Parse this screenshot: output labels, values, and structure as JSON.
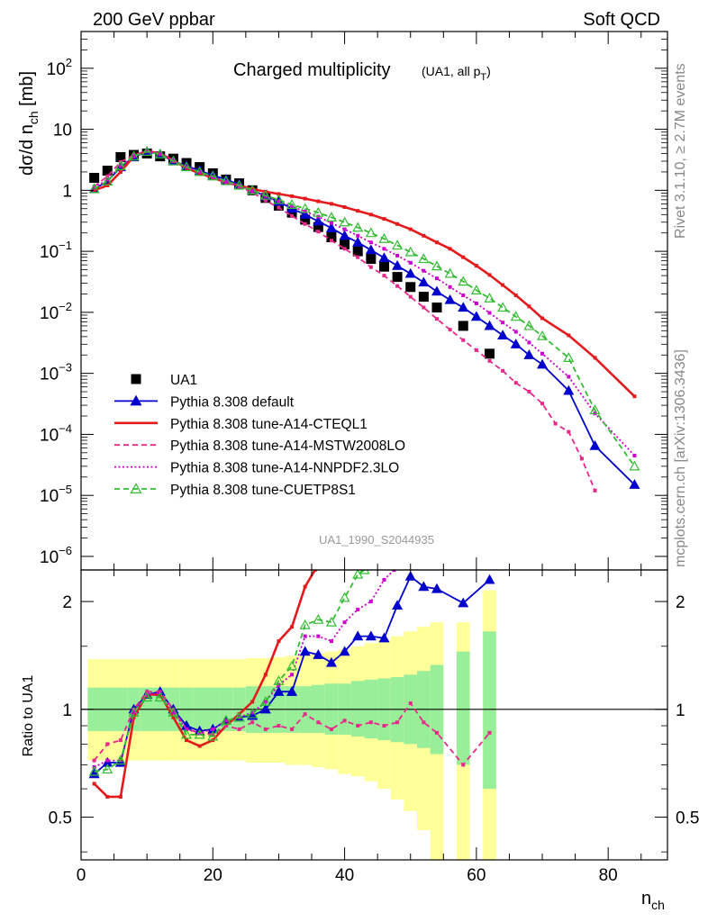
{
  "header": {
    "left": "200 GeV ppbar",
    "right": "Soft QCD"
  },
  "side_labels": {
    "rivet": "Rivet 3.1.10, ≥ 2.7M events",
    "mcplots": "mcplots.cern.ch [arXiv:1306.3436]"
  },
  "chart_data": [
    {
      "type": "scatter",
      "panel": "main",
      "title_main": "Charged multiplicity",
      "title_sub": "(UA1, all p",
      "title_sub_subscript": "T",
      "title_sub_end": ")",
      "ylabel": "dσ/d n",
      "ylabel_subscript": "ch",
      "ylabel_unit": " [mb]",
      "analysis_label": "UA1_1990_S2044935",
      "y_scale": "log",
      "xlim": [
        0,
        89
      ],
      "ylim": [
        6e-07,
        400
      ],
      "y_ticks": [
        {
          "label": "10",
          "exp": "2"
        },
        {
          "label": "10",
          "exp": ""
        },
        {
          "label": "1",
          "exp": ""
        },
        {
          "label": "10",
          "exp": "−1"
        },
        {
          "label": "10",
          "exp": "−2"
        },
        {
          "label": "10",
          "exp": "−3"
        },
        {
          "label": "10",
          "exp": "−4"
        },
        {
          "label": "10",
          "exp": "−5"
        },
        {
          "label": "10",
          "exp": "−6"
        }
      ],
      "legend_position": "bottom-left",
      "series": [
        {
          "name": "UA1",
          "color": "#000000",
          "marker": "square",
          "x": [
            2,
            4,
            6,
            8,
            10,
            12,
            14,
            16,
            18,
            20,
            22,
            24,
            26,
            28,
            30,
            32,
            34,
            36,
            38,
            40,
            42,
            44,
            46,
            48,
            50,
            52,
            54,
            58,
            62
          ],
          "y": [
            1.6,
            2.1,
            3.5,
            3.8,
            4.0,
            3.6,
            3.3,
            2.8,
            2.4,
            1.9,
            1.5,
            1.3,
            1.0,
            0.75,
            0.56,
            0.43,
            0.33,
            0.25,
            0.17,
            0.13,
            0.1,
            0.075,
            0.056,
            0.038,
            0.026,
            0.018,
            0.012,
            0.006,
            0.0021
          ]
        },
        {
          "name": "Pythia 8.308 default",
          "color": "#0000cc",
          "marker": "triangle-filled",
          "line": "solid",
          "x": [
            2,
            4,
            6,
            8,
            10,
            12,
            14,
            16,
            18,
            20,
            22,
            24,
            26,
            28,
            30,
            32,
            34,
            36,
            38,
            40,
            42,
            44,
            46,
            48,
            50,
            52,
            54,
            56,
            58,
            60,
            62,
            64,
            66,
            68,
            70,
            74,
            78,
            84
          ],
          "y": [
            1.05,
            1.4,
            2.4,
            3.5,
            4.3,
            3.9,
            3.0,
            2.5,
            2.1,
            1.75,
            1.5,
            1.25,
            1.0,
            0.8,
            0.65,
            0.5,
            0.4,
            0.31,
            0.24,
            0.18,
            0.14,
            0.105,
            0.078,
            0.058,
            0.043,
            0.031,
            0.022,
            0.016,
            0.012,
            0.0085,
            0.006,
            0.0042,
            0.003,
            0.002,
            0.0014,
            0.00052,
            6.5e-05,
            1.5e-05
          ]
        },
        {
          "name": "Pythia 8.308 tune-A14-CTEQL1",
          "color": "#e41a1c",
          "marker": "none",
          "line": "solid",
          "x": [
            2,
            4,
            6,
            8,
            10,
            12,
            14,
            16,
            18,
            20,
            22,
            24,
            26,
            28,
            30,
            32,
            34,
            36,
            38,
            40,
            42,
            44,
            46,
            48,
            50,
            52,
            54,
            56,
            58,
            60,
            62,
            64,
            66,
            68,
            70,
            74,
            78,
            84
          ],
          "y": [
            1.0,
            1.2,
            2.0,
            3.6,
            4.4,
            4.0,
            3.1,
            2.3,
            1.9,
            1.6,
            1.35,
            1.2,
            1.05,
            0.95,
            0.87,
            0.8,
            0.73,
            0.66,
            0.6,
            0.53,
            0.46,
            0.4,
            0.34,
            0.28,
            0.23,
            0.18,
            0.14,
            0.11,
            0.08,
            0.058,
            0.041,
            0.028,
            0.019,
            0.0125,
            0.008,
            0.0042,
            0.0018,
            0.00042
          ]
        },
        {
          "name": "Pythia 8.308 tune-A14-MSTW2008LO",
          "color": "#e7298a",
          "marker": "none",
          "line": "dashed",
          "x": [
            2,
            4,
            6,
            8,
            10,
            12,
            14,
            16,
            18,
            20,
            22,
            24,
            26,
            28,
            30,
            32,
            34,
            36,
            38,
            40,
            42,
            44,
            46,
            48,
            50,
            52,
            54,
            56,
            58,
            60,
            62,
            64,
            66,
            68,
            70,
            72,
            74,
            76,
            78
          ],
          "y": [
            1.15,
            1.7,
            2.9,
            3.8,
            4.4,
            3.9,
            3.0,
            2.4,
            2.0,
            1.6,
            1.35,
            1.15,
            0.92,
            0.68,
            0.52,
            0.38,
            0.28,
            0.21,
            0.15,
            0.11,
            0.08,
            0.055,
            0.04,
            0.027,
            0.018,
            0.012,
            0.0078,
            0.0052,
            0.0035,
            0.0024,
            0.0016,
            0.0011,
            0.0007,
            0.0005,
            0.00032,
            0.00015,
            0.00011,
            4e-05,
            1.2e-05
          ]
        },
        {
          "name": "Pythia 8.308 tune-A14-NNPDF2.3LO",
          "color": "#cc00cc",
          "marker": "none",
          "line": "dotted",
          "x": [
            2,
            4,
            6,
            8,
            10,
            12,
            14,
            16,
            18,
            20,
            22,
            24,
            26,
            28,
            30,
            32,
            34,
            36,
            38,
            40,
            42,
            44,
            46,
            48,
            50,
            52,
            54,
            56,
            58,
            60,
            62,
            64,
            66,
            68,
            70,
            74,
            78,
            84
          ],
          "y": [
            1.1,
            1.5,
            2.5,
            3.6,
            4.4,
            4.0,
            3.1,
            2.4,
            2.0,
            1.65,
            1.4,
            1.2,
            0.98,
            0.8,
            0.66,
            0.54,
            0.45,
            0.37,
            0.29,
            0.23,
            0.18,
            0.14,
            0.11,
            0.085,
            0.065,
            0.048,
            0.036,
            0.026,
            0.019,
            0.014,
            0.0098,
            0.0068,
            0.0048,
            0.0032,
            0.0021,
            0.00088,
            0.00022,
            4.5e-05
          ]
        },
        {
          "name": "Pythia 8.308 tune-CUETP8S1",
          "color": "#33bb33",
          "marker": "triangle-open",
          "line": "dashed",
          "x": [
            2,
            4,
            6,
            8,
            10,
            12,
            14,
            16,
            18,
            20,
            22,
            24,
            26,
            28,
            30,
            32,
            34,
            36,
            38,
            40,
            42,
            44,
            46,
            48,
            50,
            52,
            54,
            56,
            58,
            60,
            62,
            64,
            66,
            68,
            70,
            74,
            78,
            84
          ],
          "y": [
            1.05,
            1.4,
            2.5,
            3.6,
            4.3,
            3.9,
            3.0,
            2.4,
            2.0,
            1.7,
            1.42,
            1.2,
            1.0,
            0.82,
            0.7,
            0.58,
            0.5,
            0.43,
            0.36,
            0.3,
            0.245,
            0.2,
            0.16,
            0.125,
            0.097,
            0.075,
            0.057,
            0.043,
            0.032,
            0.023,
            0.017,
            0.012,
            0.0085,
            0.006,
            0.0041,
            0.0018,
            0.00025,
            3e-05
          ]
        }
      ]
    },
    {
      "type": "line",
      "panel": "ratio",
      "ylabel": "Ratio to UA1",
      "xlabel": "n",
      "xlabel_subscript": "ch",
      "y_scale": "log",
      "xlim": [
        0,
        89
      ],
      "ylim": [
        0.38,
        2.45
      ],
      "x_ticks": [
        "0",
        "20",
        "40",
        "60",
        "80"
      ],
      "y_ticks": [
        "0.5",
        "1",
        "2"
      ],
      "reference_line": 1,
      "bands": {
        "x": [
          2,
          4,
          6,
          8,
          10,
          12,
          14,
          16,
          18,
          20,
          22,
          24,
          26,
          28,
          30,
          32,
          34,
          36,
          38,
          40,
          42,
          44,
          46,
          48,
          50,
          52,
          54,
          58,
          62
        ],
        "stat_lo": [
          0.87,
          0.87,
          0.87,
          0.87,
          0.87,
          0.87,
          0.87,
          0.87,
          0.87,
          0.87,
          0.87,
          0.87,
          0.86,
          0.86,
          0.86,
          0.86,
          0.86,
          0.86,
          0.85,
          0.85,
          0.84,
          0.83,
          0.82,
          0.81,
          0.8,
          0.78,
          0.75,
          0.7,
          0.6
        ],
        "stat_hi": [
          1.15,
          1.15,
          1.15,
          1.15,
          1.15,
          1.15,
          1.15,
          1.15,
          1.15,
          1.15,
          1.15,
          1.15,
          1.16,
          1.16,
          1.16,
          1.16,
          1.16,
          1.17,
          1.18,
          1.18,
          1.2,
          1.21,
          1.22,
          1.23,
          1.25,
          1.28,
          1.33,
          1.45,
          1.65
        ],
        "syst_lo": [
          0.72,
          0.72,
          0.72,
          0.72,
          0.72,
          0.72,
          0.72,
          0.72,
          0.72,
          0.72,
          0.72,
          0.72,
          0.71,
          0.71,
          0.71,
          0.7,
          0.7,
          0.69,
          0.68,
          0.66,
          0.65,
          0.63,
          0.6,
          0.56,
          0.52,
          0.46,
          0.38,
          0.38,
          0.38
        ],
        "syst_hi": [
          1.38,
          1.38,
          1.38,
          1.38,
          1.38,
          1.38,
          1.38,
          1.38,
          1.38,
          1.38,
          1.38,
          1.38,
          1.39,
          1.39,
          1.4,
          1.41,
          1.42,
          1.43,
          1.45,
          1.47,
          1.5,
          1.53,
          1.56,
          1.6,
          1.65,
          1.7,
          1.75,
          1.75,
          2.15
        ]
      },
      "series": [
        {
          "name": "Pythia 8.308 default",
          "color": "#0000cc",
          "marker": "triangle-filled",
          "line": "solid",
          "x": [
            2,
            4,
            6,
            8,
            10,
            12,
            14,
            16,
            18,
            20,
            22,
            24,
            26,
            28,
            30,
            32,
            34,
            36,
            38,
            40,
            42,
            44,
            46,
            48,
            50,
            52,
            54,
            58,
            62
          ],
          "y": [
            0.66,
            0.71,
            0.71,
            1.0,
            1.1,
            1.12,
            1.0,
            0.9,
            0.87,
            0.88,
            0.93,
            0.95,
            0.96,
            1.0,
            1.12,
            1.12,
            1.45,
            1.42,
            1.35,
            1.45,
            1.6,
            1.6,
            1.58,
            1.95,
            2.35,
            2.2,
            2.17,
            1.98,
            2.3
          ]
        },
        {
          "name": "Pythia 8.308 tune-A14-CTEQL1",
          "color": "#e41a1c",
          "marker": "none",
          "line": "solid",
          "x": [
            2,
            4,
            6,
            8,
            10,
            12,
            14,
            16,
            18,
            20,
            22,
            24,
            26,
            28,
            30,
            32,
            34,
            35.5
          ],
          "y": [
            0.62,
            0.57,
            0.57,
            0.95,
            1.1,
            1.1,
            0.95,
            0.82,
            0.79,
            0.82,
            0.9,
            0.97,
            1.05,
            1.25,
            1.55,
            1.7,
            2.2,
            2.45
          ]
        },
        {
          "name": "Pythia 8.308 tune-A14-MSTW2008LO",
          "color": "#e7298a",
          "marker": "none",
          "line": "dashed",
          "x": [
            2,
            4,
            6,
            8,
            10,
            12,
            14,
            16,
            18,
            20,
            22,
            24,
            26,
            28,
            30,
            32,
            34,
            36,
            38,
            40,
            42,
            44,
            46,
            48,
            50,
            52,
            54,
            58,
            62
          ],
          "y": [
            0.72,
            0.8,
            0.82,
            1.0,
            1.12,
            1.12,
            1.0,
            0.88,
            0.86,
            0.85,
            0.9,
            0.88,
            0.92,
            0.88,
            0.9,
            0.88,
            0.97,
            0.92,
            0.88,
            0.93,
            0.9,
            0.92,
            0.9,
            0.92,
            1.04,
            0.92,
            0.86,
            0.7,
            0.86
          ]
        },
        {
          "name": "Pythia 8.308 tune-A14-NNPDF2.3LO",
          "color": "#cc00cc",
          "marker": "none",
          "line": "dotted",
          "x": [
            2,
            4,
            6,
            8,
            10,
            12,
            14,
            16,
            18,
            20,
            22,
            24,
            26,
            28,
            30,
            32,
            34,
            36,
            38,
            40,
            42,
            44,
            46,
            47.5
          ],
          "y": [
            0.69,
            0.72,
            0.72,
            0.98,
            1.1,
            1.11,
            0.98,
            0.88,
            0.86,
            0.88,
            0.93,
            0.95,
            0.98,
            1.05,
            1.17,
            1.25,
            1.6,
            1.6,
            1.55,
            1.75,
            1.9,
            2.0,
            2.3,
            2.45
          ]
        },
        {
          "name": "Pythia 8.308 tune-CUETP8S1",
          "color": "#33bb33",
          "marker": "triangle-open",
          "line": "dashed",
          "x": [
            2,
            4,
            6,
            8,
            10,
            12,
            14,
            16,
            18,
            20,
            22,
            24,
            26,
            28,
            30,
            32,
            34,
            36,
            38,
            40,
            42,
            43
          ],
          "y": [
            0.67,
            0.68,
            0.72,
            0.98,
            1.08,
            1.08,
            0.98,
            0.85,
            0.85,
            0.84,
            0.93,
            0.95,
            0.97,
            1.05,
            1.2,
            1.32,
            1.72,
            1.78,
            1.75,
            2.05,
            2.38,
            2.45
          ]
        }
      ]
    }
  ]
}
